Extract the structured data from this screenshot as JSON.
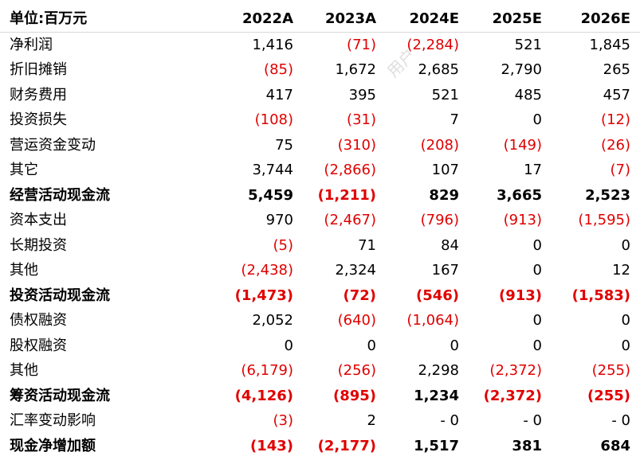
{
  "header": {
    "unit_label": "单位:百万元",
    "years": [
      "2022A",
      "2023A",
      "2024E",
      "2025E",
      "2026E"
    ]
  },
  "watermark": "用户",
  "rows": [
    {
      "label": "净利润",
      "bold": false,
      "values": [
        "1,416",
        "(71)",
        "(2,284)",
        "521",
        "1,845"
      ]
    },
    {
      "label": "折旧摊销",
      "bold": false,
      "values": [
        "(85)",
        "1,672",
        "2,685",
        "2,790",
        "265"
      ]
    },
    {
      "label": "财务费用",
      "bold": false,
      "values": [
        "417",
        "395",
        "521",
        "485",
        "457"
      ]
    },
    {
      "label": "投资损失",
      "bold": false,
      "values": [
        "(108)",
        "(31)",
        "7",
        "0",
        "(12)"
      ]
    },
    {
      "label": "营运资金变动",
      "bold": false,
      "values": [
        "75",
        "(310)",
        "(208)",
        "(149)",
        "(26)"
      ]
    },
    {
      "label": "其它",
      "bold": false,
      "values": [
        "3,744",
        "(2,866)",
        "107",
        "17",
        "(7)"
      ]
    },
    {
      "label": "经营活动现金流",
      "bold": true,
      "values": [
        "5,459",
        "(1,211)",
        "829",
        "3,665",
        "2,523"
      ]
    },
    {
      "label": "资本支出",
      "bold": false,
      "values": [
        "970",
        "(2,467)",
        "(796)",
        "(913)",
        "(1,595)"
      ]
    },
    {
      "label": "长期投资",
      "bold": false,
      "values": [
        "(5)",
        "71",
        "84",
        "0",
        "0"
      ]
    },
    {
      "label": "其他",
      "bold": false,
      "values": [
        "(2,438)",
        "2,324",
        "167",
        "0",
        "12"
      ]
    },
    {
      "label": "投资活动现金流",
      "bold": true,
      "values": [
        "(1,473)",
        "(72)",
        "(546)",
        "(913)",
        "(1,583)"
      ]
    },
    {
      "label": "债权融资",
      "bold": false,
      "values": [
        "2,052",
        "(640)",
        "(1,064)",
        "0",
        "0"
      ]
    },
    {
      "label": "股权融资",
      "bold": false,
      "values": [
        "0",
        "0",
        "0",
        "0",
        "0"
      ]
    },
    {
      "label": "其他",
      "bold": false,
      "values": [
        "(6,179)",
        "(256)",
        "2,298",
        "(2,372)",
        "(255)"
      ]
    },
    {
      "label": "筹资活动现金流",
      "bold": true,
      "values": [
        "(4,126)",
        "(895)",
        "1,234",
        "(2,372)",
        "(255)"
      ]
    },
    {
      "label": "汇率变动影响",
      "bold": false,
      "values": [
        "(3)",
        "2",
        "- 0",
        "- 0",
        "- 0"
      ]
    },
    {
      "label": "现金净增加额",
      "bold": true,
      "values": [
        "(143)",
        "(2,177)",
        "1,517",
        "381",
        "684"
      ]
    }
  ],
  "colors": {
    "negative": "#e00000",
    "text": "#000000",
    "rule": "#d9d9d9"
  }
}
